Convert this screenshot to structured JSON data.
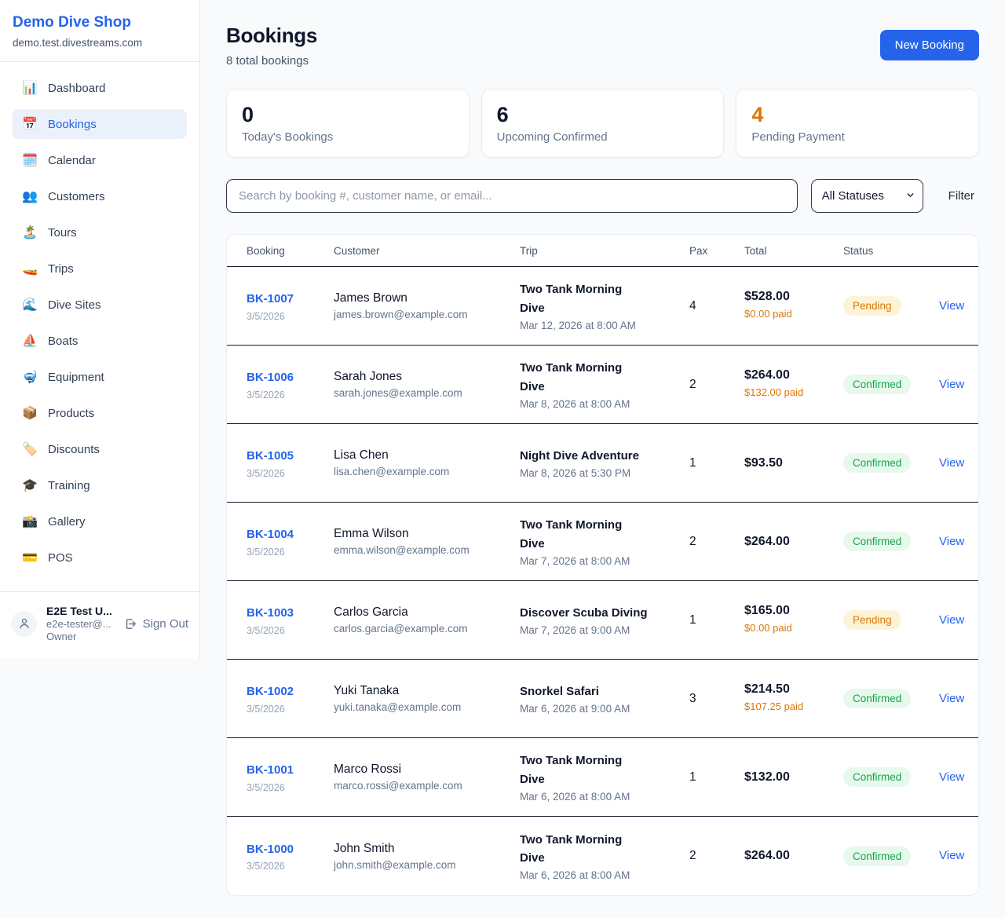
{
  "sidebar": {
    "brand": {
      "title": "Demo Dive Shop",
      "domain": "demo.test.divestreams.com"
    },
    "items": [
      {
        "key": "dashboard",
        "icon": "📊",
        "label": "Dashboard",
        "active": false
      },
      {
        "key": "bookings",
        "icon": "📅",
        "label": "Bookings",
        "active": true
      },
      {
        "key": "calendar",
        "icon": "🗓️",
        "label": "Calendar",
        "active": false
      },
      {
        "key": "customers",
        "icon": "👥",
        "label": "Customers",
        "active": false
      },
      {
        "key": "tours",
        "icon": "🏝️",
        "label": "Tours",
        "active": false
      },
      {
        "key": "trips",
        "icon": "🚤",
        "label": "Trips",
        "active": false
      },
      {
        "key": "dive-sites",
        "icon": "🌊",
        "label": "Dive Sites",
        "active": false
      },
      {
        "key": "boats",
        "icon": "⛵",
        "label": "Boats",
        "active": false
      },
      {
        "key": "equipment",
        "icon": "🤿",
        "label": "Equipment",
        "active": false
      },
      {
        "key": "products",
        "icon": "📦",
        "label": "Products",
        "active": false
      },
      {
        "key": "discounts",
        "icon": "🏷️",
        "label": "Discounts",
        "active": false
      },
      {
        "key": "training",
        "icon": "🎓",
        "label": "Training",
        "active": false
      },
      {
        "key": "gallery",
        "icon": "📸",
        "label": "Gallery",
        "active": false
      },
      {
        "key": "pos",
        "icon": "💳",
        "label": "POS",
        "active": false
      }
    ],
    "user": {
      "name": "E2E Test U...",
      "email": "e2e-tester@...",
      "role": "Owner",
      "sign_out_label": "Sign Out"
    }
  },
  "header": {
    "title": "Bookings",
    "subtitle": "8 total bookings",
    "new_booking_label": "New Booking"
  },
  "stats": [
    {
      "value": "0",
      "label": "Today's Bookings",
      "color": "#0f172a"
    },
    {
      "value": "6",
      "label": "Upcoming Confirmed",
      "color": "#0f172a"
    },
    {
      "value": "4",
      "label": "Pending Payment",
      "color": "#d97706"
    }
  ],
  "filters": {
    "search_placeholder": "Search by booking #, customer name, or email...",
    "status_selected": "All Statuses",
    "filter_label": "Filter"
  },
  "table": {
    "columns": [
      "Booking",
      "Customer",
      "Trip",
      "Pax",
      "Total",
      "Status"
    ],
    "view_label": "View",
    "rows": [
      {
        "id": "BK-1007",
        "date": "3/5/2026",
        "name": "James Brown",
        "email": "james.brown@example.com",
        "trip": "Two Tank Morning Dive",
        "trip_date": "Mar 12, 2026 at 8:00 AM",
        "pax": "4",
        "total": "$528.00",
        "paid": "$0.00 paid",
        "status": "Pending"
      },
      {
        "id": "BK-1006",
        "date": "3/5/2026",
        "name": "Sarah Jones",
        "email": "sarah.jones@example.com",
        "trip": "Two Tank Morning Dive",
        "trip_date": "Mar 8, 2026 at 8:00 AM",
        "pax": "2",
        "total": "$264.00",
        "paid": "$132.00 paid",
        "status": "Confirmed"
      },
      {
        "id": "BK-1005",
        "date": "3/5/2026",
        "name": "Lisa Chen",
        "email": "lisa.chen@example.com",
        "trip": "Night Dive Adventure",
        "trip_date": "Mar 8, 2026 at 5:30 PM",
        "pax": "1",
        "total": "$93.50",
        "paid": "",
        "status": "Confirmed"
      },
      {
        "id": "BK-1004",
        "date": "3/5/2026",
        "name": "Emma Wilson",
        "email": "emma.wilson@example.com",
        "trip": "Two Tank Morning Dive",
        "trip_date": "Mar 7, 2026 at 8:00 AM",
        "pax": "2",
        "total": "$264.00",
        "paid": "",
        "status": "Confirmed"
      },
      {
        "id": "BK-1003",
        "date": "3/5/2026",
        "name": "Carlos Garcia",
        "email": "carlos.garcia@example.com",
        "trip": "Discover Scuba Diving",
        "trip_date": "Mar 7, 2026 at 9:00 AM",
        "pax": "1",
        "total": "$165.00",
        "paid": "$0.00 paid",
        "status": "Pending"
      },
      {
        "id": "BK-1002",
        "date": "3/5/2026",
        "name": "Yuki Tanaka",
        "email": "yuki.tanaka@example.com",
        "trip": "Snorkel Safari",
        "trip_date": "Mar 6, 2026 at 9:00 AM",
        "pax": "3",
        "total": "$214.50",
        "paid": "$107.25 paid",
        "status": "Confirmed"
      },
      {
        "id": "BK-1001",
        "date": "3/5/2026",
        "name": "Marco Rossi",
        "email": "marco.rossi@example.com",
        "trip": "Two Tank Morning Dive",
        "trip_date": "Mar 6, 2026 at 8:00 AM",
        "pax": "1",
        "total": "$132.00",
        "paid": "",
        "status": "Confirmed"
      },
      {
        "id": "BK-1000",
        "date": "3/5/2026",
        "name": "John Smith",
        "email": "john.smith@example.com",
        "trip": "Two Tank Morning Dive",
        "trip_date": "Mar 6, 2026 at 8:00 AM",
        "pax": "2",
        "total": "$264.00",
        "paid": "",
        "status": "Confirmed"
      }
    ]
  },
  "colors": {
    "accent_blue": "#2563eb",
    "pending_text": "#d97706",
    "pending_bg": "#fdf3d7",
    "confirmed_text": "#16a34a",
    "confirmed_bg": "#e6f9ec",
    "page_bg": "#f8fafc"
  }
}
